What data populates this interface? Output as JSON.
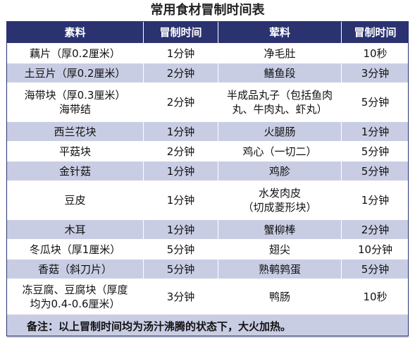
{
  "title": "常用食材冒制时间表",
  "headers": [
    "素料",
    "冒制时间",
    "荤料",
    "冒制时间"
  ],
  "rows": [
    {
      "veg": [
        "藕片（厚0.2厘米）"
      ],
      "veg_time": "1分钟",
      "meat": [
        "净毛肚"
      ],
      "meat_time": "10秒"
    },
    {
      "veg": [
        "土豆片（厚0.2厘米）"
      ],
      "veg_time": "2分钟",
      "meat": [
        "鳝鱼段"
      ],
      "meat_time": "3分钟"
    },
    {
      "veg": [
        "海带块（厚0.3厘米）",
        "海带结"
      ],
      "veg_time": "2分钟",
      "meat": [
        "半成品丸子（包括鱼肉",
        "丸、牛肉丸、虾丸）"
      ],
      "meat_time": "5分钟"
    },
    {
      "veg": [
        "西兰花块"
      ],
      "veg_time": "1分钟",
      "meat": [
        "火腿肠"
      ],
      "meat_time": "1分钟"
    },
    {
      "veg": [
        "平菇块"
      ],
      "veg_time": "2分钟",
      "meat": [
        "鸡心（一切二）"
      ],
      "meat_time": "5分钟"
    },
    {
      "veg": [
        "金针菇"
      ],
      "veg_time": "1分钟",
      "meat": [
        "鸡胗"
      ],
      "meat_time": "5分钟"
    },
    {
      "veg": [
        "豆皮"
      ],
      "veg_time": "1分钟",
      "meat": [
        "水发肉皮",
        "（切成菱形块）"
      ],
      "meat_time": "1分钟"
    },
    {
      "veg": [
        "木耳"
      ],
      "veg_time": "1分钟",
      "meat": [
        "蟹柳棒"
      ],
      "meat_time": "2分钟"
    },
    {
      "veg": [
        "冬瓜块（厚1厘米）"
      ],
      "veg_time": "5分钟",
      "meat": [
        "翅尖"
      ],
      "meat_time": "10分钟"
    },
    {
      "veg": [
        "香菇（斜刀片）"
      ],
      "veg_time": "5分钟",
      "meat": [
        "熟鹌鹑蛋"
      ],
      "meat_time": "5分钟"
    },
    {
      "veg": [
        "冻豆腐、豆腐块（厚度",
        "均为0.4-0.6厘米）"
      ],
      "veg_time": "3分钟",
      "meat": [
        "鸭肠"
      ],
      "meat_time": "10秒"
    }
  ],
  "note": "备注：以上冒制时间均为汤汁沸腾的状态下，大火加热。"
}
